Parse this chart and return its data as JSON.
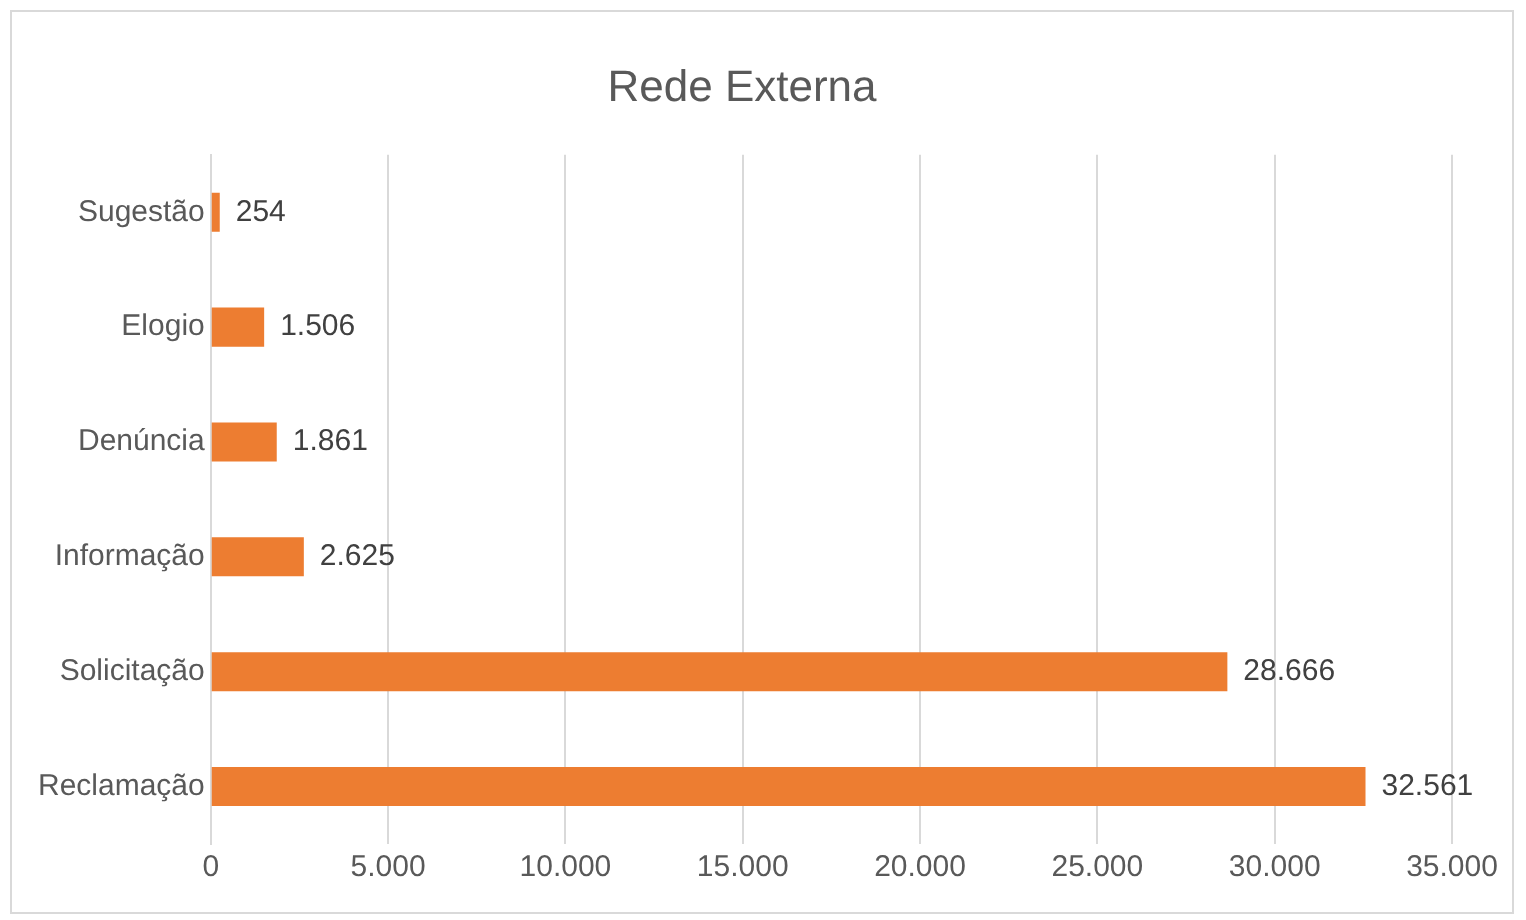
{
  "chart_data": {
    "type": "bar",
    "orientation": "horizontal",
    "title": "Rede Externa",
    "categories": [
      "Sugestão",
      "Elogio",
      "Denúncia",
      "Informação",
      "Solicitação",
      "Reclamação"
    ],
    "values": [
      254,
      1506,
      1861,
      2625,
      28666,
      32561
    ],
    "value_labels": [
      "254",
      "1.506",
      "1.861",
      "2.625",
      "28.666",
      "32.561"
    ],
    "color": "#ed7d31",
    "xlim": [
      0,
      35000
    ],
    "xticks": [
      {
        "value": 0,
        "label": "0"
      },
      {
        "value": 5000,
        "label": "5.000"
      },
      {
        "value": 10000,
        "label": "10.000"
      },
      {
        "value": 15000,
        "label": "15.000"
      },
      {
        "value": 20000,
        "label": "20.000"
      },
      {
        "value": 25000,
        "label": "25.000"
      },
      {
        "value": 30000,
        "label": "30.000"
      },
      {
        "value": 35000,
        "label": "35.000"
      }
    ],
    "grid": "x",
    "legend": false
  }
}
